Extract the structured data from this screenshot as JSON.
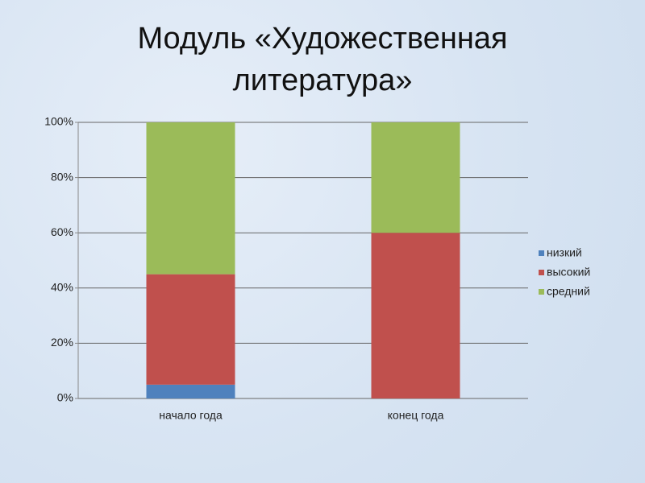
{
  "chart_data": {
    "type": "stacked_bar",
    "title": "Модуль «Художественная литература»",
    "categories": [
      "начало года",
      "конец года"
    ],
    "series": [
      {
        "name": "низкий",
        "color": "#4f81bd",
        "values": [
          5,
          0
        ]
      },
      {
        "name": "высокий",
        "color": "#c0504d",
        "values": [
          40,
          60
        ]
      },
      {
        "name": "средний",
        "color": "#9bbb59",
        "values": [
          55,
          40
        ]
      }
    ],
    "ylim": [
      0,
      100
    ],
    "yticks": [
      {
        "value": 0,
        "label": "0%"
      },
      {
        "value": 20,
        "label": "20%"
      },
      {
        "value": 40,
        "label": "40%"
      },
      {
        "value": 60,
        "label": "60%"
      },
      {
        "value": 80,
        "label": "80%"
      },
      {
        "value": 100,
        "label": "100%"
      }
    ],
    "grid": true,
    "legend": "right"
  }
}
